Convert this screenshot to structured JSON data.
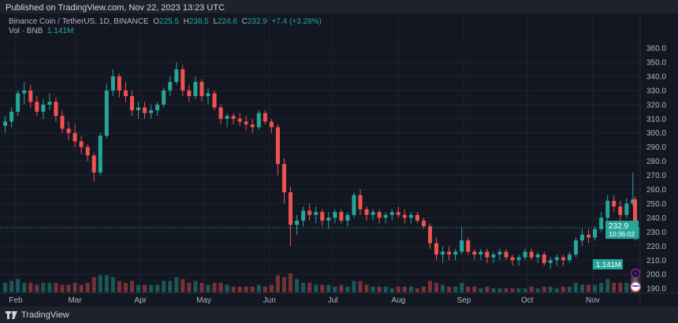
{
  "header": {
    "published": "Published on TradingView.com, Nov 22, 2023 13:23 UTC"
  },
  "legend": {
    "symbol": "Binance Coin / TetherUS, 1D, BINANCE",
    "o_label": "O",
    "o": "225.5",
    "h_label": "H",
    "h": "238.5",
    "l_label": "L",
    "l": "224.6",
    "c_label": "C",
    "c": "232.9",
    "change": "+7.4 (+3.28%)",
    "vol_label": "Vol · BNB",
    "vol": "1.141M"
  },
  "footer": {
    "brand": "TradingView"
  },
  "colors": {
    "up": "#26a69a",
    "down": "#ef5350",
    "background": "#131722",
    "grid": "#1f2330"
  },
  "badges": {
    "price": "232.9",
    "countdown": "10:36:02",
    "volume": "1.141M"
  },
  "icons": [
    "lightning-icon",
    "us-flag-icon",
    "tradingview-logo-icon"
  ],
  "chart_data": {
    "type": "candlestick",
    "title": "",
    "ylim": [
      185,
      365
    ],
    "y_ticks": [
      "190.0",
      "200.0",
      "210.0",
      "220.0",
      "230.0",
      "240.0",
      "250.0",
      "260.0",
      "270.0",
      "280.0",
      "290.0",
      "300.0",
      "310.0",
      "320.0",
      "330.0",
      "340.0",
      "350.0",
      "360.0"
    ],
    "x_ticks": [
      {
        "label": "Feb",
        "date": "2023-02-01"
      },
      {
        "label": "Mar",
        "date": "2023-03-01"
      },
      {
        "label": "Apr",
        "date": "2023-04-01"
      },
      {
        "label": "May",
        "date": "2023-05-01"
      },
      {
        "label": "Jun",
        "date": "2023-06-01"
      },
      {
        "label": "Jul",
        "date": "2023-07-01"
      },
      {
        "label": "Aug",
        "date": "2023-08-01"
      },
      {
        "label": "Sep",
        "date": "2023-09-01"
      },
      {
        "label": "Oct",
        "date": "2023-10-01"
      },
      {
        "label": "Nov",
        "date": "2023-11-01"
      }
    ],
    "grid": true,
    "columns": [
      "date",
      "open",
      "high",
      "low",
      "close",
      "volume_m"
    ],
    "candles": [
      [
        "2023-01-27",
        305,
        312,
        300,
        308,
        0.5
      ],
      [
        "2023-01-30",
        308,
        318,
        304,
        315,
        0.6
      ],
      [
        "2023-02-02",
        315,
        330,
        312,
        328,
        0.7
      ],
      [
        "2023-02-05",
        328,
        336,
        320,
        330,
        0.5
      ],
      [
        "2023-02-08",
        330,
        334,
        318,
        322,
        0.5
      ],
      [
        "2023-02-11",
        322,
        326,
        312,
        315,
        0.4
      ],
      [
        "2023-02-14",
        315,
        324,
        310,
        320,
        0.5
      ],
      [
        "2023-02-17",
        320,
        328,
        316,
        322,
        0.5
      ],
      [
        "2023-02-20",
        322,
        325,
        308,
        312,
        0.5
      ],
      [
        "2023-02-23",
        312,
        316,
        300,
        303,
        0.4
      ],
      [
        "2023-02-26",
        303,
        308,
        295,
        300,
        0.4
      ],
      [
        "2023-03-01",
        300,
        306,
        290,
        294,
        0.5
      ],
      [
        "2023-03-04",
        294,
        298,
        285,
        290,
        0.4
      ],
      [
        "2023-03-07",
        290,
        292,
        280,
        284,
        0.5
      ],
      [
        "2023-03-10",
        284,
        286,
        266,
        272,
        0.8
      ],
      [
        "2023-03-13",
        272,
        300,
        270,
        298,
        0.9
      ],
      [
        "2023-03-16",
        298,
        335,
        296,
        330,
        0.9
      ],
      [
        "2023-03-19",
        330,
        345,
        326,
        340,
        0.8
      ],
      [
        "2023-03-22",
        340,
        342,
        325,
        330,
        0.6
      ],
      [
        "2023-03-25",
        330,
        336,
        322,
        326,
        0.5
      ],
      [
        "2023-03-28",
        326,
        330,
        312,
        316,
        0.6
      ],
      [
        "2023-03-31",
        316,
        322,
        310,
        318,
        0.4
      ],
      [
        "2023-04-03",
        318,
        322,
        310,
        314,
        0.4
      ],
      [
        "2023-04-06",
        314,
        320,
        310,
        316,
        0.4
      ],
      [
        "2023-04-09",
        316,
        322,
        312,
        320,
        0.4
      ],
      [
        "2023-04-12",
        320,
        332,
        318,
        330,
        0.6
      ],
      [
        "2023-04-15",
        330,
        340,
        326,
        336,
        0.6
      ],
      [
        "2023-04-18",
        336,
        350,
        334,
        345,
        0.8
      ],
      [
        "2023-04-21",
        345,
        348,
        326,
        330,
        0.7
      ],
      [
        "2023-04-24",
        330,
        334,
        322,
        326,
        0.5
      ],
      [
        "2023-04-27",
        326,
        340,
        324,
        336,
        0.6
      ],
      [
        "2023-04-30",
        336,
        338,
        322,
        326,
        0.5
      ],
      [
        "2023-05-03",
        326,
        332,
        320,
        328,
        0.4
      ],
      [
        "2023-05-06",
        328,
        330,
        316,
        318,
        0.5
      ],
      [
        "2023-05-09",
        318,
        320,
        306,
        310,
        0.5
      ],
      [
        "2023-05-12",
        310,
        314,
        304,
        312,
        0.4
      ],
      [
        "2023-05-15",
        312,
        314,
        306,
        310,
        0.3
      ],
      [
        "2023-05-18",
        310,
        314,
        305,
        308,
        0.3
      ],
      [
        "2023-05-21",
        308,
        312,
        302,
        306,
        0.3
      ],
      [
        "2023-05-24",
        306,
        310,
        300,
        304,
        0.3
      ],
      [
        "2023-05-27",
        304,
        316,
        302,
        314,
        0.4
      ],
      [
        "2023-05-30",
        314,
        316,
        306,
        308,
        0.3
      ],
      [
        "2023-06-02",
        308,
        310,
        300,
        304,
        0.4
      ],
      [
        "2023-06-05",
        304,
        306,
        270,
        278,
        0.9
      ],
      [
        "2023-06-08",
        278,
        282,
        250,
        258,
        0.8
      ],
      [
        "2023-06-11",
        258,
        262,
        220,
        235,
        1.0
      ],
      [
        "2023-06-14",
        235,
        242,
        228,
        238,
        0.7
      ],
      [
        "2023-06-17",
        238,
        248,
        234,
        245,
        0.5
      ],
      [
        "2023-06-20",
        245,
        250,
        238,
        242,
        0.5
      ],
      [
        "2023-06-23",
        242,
        248,
        236,
        244,
        0.4
      ],
      [
        "2023-06-26",
        244,
        246,
        234,
        238,
        0.4
      ],
      [
        "2023-06-29",
        238,
        244,
        232,
        240,
        0.4
      ],
      [
        "2023-07-02",
        240,
        246,
        236,
        244,
        0.3
      ],
      [
        "2023-07-05",
        244,
        246,
        236,
        238,
        0.4
      ],
      [
        "2023-07-08",
        238,
        244,
        234,
        242,
        0.3
      ],
      [
        "2023-07-11",
        242,
        258,
        240,
        256,
        0.6
      ],
      [
        "2023-07-14",
        256,
        260,
        242,
        246,
        0.6
      ],
      [
        "2023-07-17",
        246,
        248,
        238,
        242,
        0.4
      ],
      [
        "2023-07-20",
        242,
        246,
        238,
        244,
        0.3
      ],
      [
        "2023-07-23",
        244,
        246,
        236,
        240,
        0.3
      ],
      [
        "2023-07-26",
        240,
        244,
        236,
        242,
        0.3
      ],
      [
        "2023-07-29",
        242,
        246,
        238,
        244,
        0.2
      ],
      [
        "2023-08-01",
        244,
        248,
        240,
        242,
        0.3
      ],
      [
        "2023-08-04",
        242,
        246,
        236,
        240,
        0.3
      ],
      [
        "2023-08-07",
        240,
        244,
        236,
        242,
        0.3
      ],
      [
        "2023-08-10",
        242,
        244,
        236,
        238,
        0.2
      ],
      [
        "2023-08-13",
        238,
        240,
        232,
        234,
        0.3
      ],
      [
        "2023-08-16",
        234,
        236,
        218,
        222,
        0.6
      ],
      [
        "2023-08-19",
        222,
        226,
        210,
        214,
        0.5
      ],
      [
        "2023-08-22",
        214,
        220,
        208,
        216,
        0.4
      ],
      [
        "2023-08-25",
        216,
        220,
        210,
        214,
        0.3
      ],
      [
        "2023-08-28",
        214,
        218,
        210,
        216,
        0.3
      ],
      [
        "2023-08-31",
        216,
        234,
        214,
        224,
        0.5
      ],
      [
        "2023-09-03",
        224,
        226,
        214,
        216,
        0.3
      ],
      [
        "2023-09-06",
        216,
        218,
        210,
        214,
        0.3
      ],
      [
        "2023-09-09",
        214,
        218,
        210,
        216,
        0.2
      ],
      [
        "2023-09-12",
        216,
        218,
        208,
        212,
        0.3
      ],
      [
        "2023-09-15",
        212,
        216,
        208,
        214,
        0.2
      ],
      [
        "2023-09-18",
        214,
        218,
        210,
        216,
        0.2
      ],
      [
        "2023-09-21",
        216,
        218,
        210,
        212,
        0.2
      ],
      [
        "2023-09-24",
        212,
        214,
        206,
        210,
        0.2
      ],
      [
        "2023-09-27",
        210,
        214,
        206,
        212,
        0.2
      ],
      [
        "2023-09-30",
        212,
        218,
        210,
        216,
        0.2
      ],
      [
        "2023-10-03",
        216,
        218,
        210,
        212,
        0.3
      ],
      [
        "2023-10-06",
        212,
        216,
        208,
        214,
        0.2
      ],
      [
        "2023-10-09",
        214,
        216,
        206,
        208,
        0.3
      ],
      [
        "2023-10-12",
        208,
        212,
        204,
        210,
        0.3
      ],
      [
        "2023-10-15",
        210,
        214,
        206,
        212,
        0.2
      ],
      [
        "2023-10-18",
        212,
        214,
        206,
        210,
        0.3
      ],
      [
        "2023-10-21",
        210,
        216,
        208,
        214,
        0.3
      ],
      [
        "2023-10-24",
        214,
        226,
        212,
        224,
        0.5
      ],
      [
        "2023-10-27",
        224,
        232,
        220,
        228,
        0.4
      ],
      [
        "2023-10-30",
        228,
        232,
        222,
        226,
        0.4
      ],
      [
        "2023-11-02",
        226,
        234,
        224,
        232,
        0.4
      ],
      [
        "2023-11-05",
        232,
        244,
        230,
        240,
        0.5
      ],
      [
        "2023-11-08",
        240,
        256,
        238,
        252,
        0.7
      ],
      [
        "2023-11-11",
        252,
        256,
        244,
        248,
        0.5
      ],
      [
        "2023-11-14",
        248,
        252,
        238,
        242,
        0.5
      ],
      [
        "2023-11-17",
        242,
        254,
        240,
        250,
        0.5
      ],
      [
        "2023-11-20",
        250,
        272,
        248,
        253,
        0.8
      ],
      [
        "2023-11-21",
        253,
        255,
        224,
        226,
        1.1
      ],
      [
        "2023-11-22",
        225.5,
        238.5,
        224.6,
        232.9,
        1.141
      ]
    ]
  }
}
